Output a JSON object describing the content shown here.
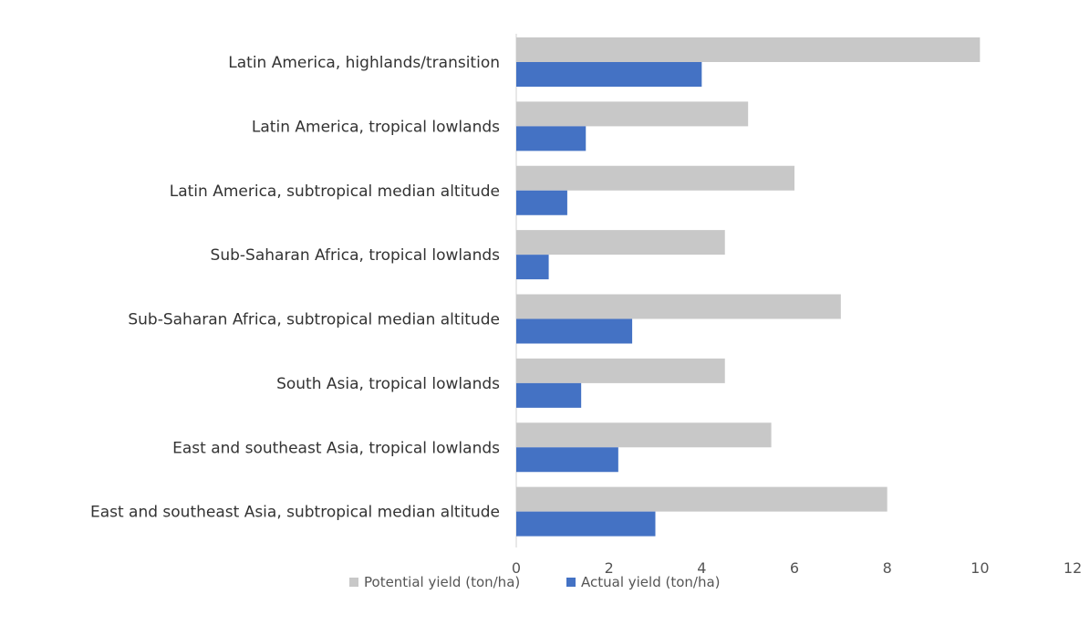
{
  "chart_data": {
    "type": "bar",
    "orientation": "horizontal",
    "categories": [
      "Latin America, highlands/transition",
      "Latin America, tropical lowlands",
      "Latin America, subtropical median altitude",
      "Sub-Saharan Africa, tropical lowlands",
      "Sub-Saharan Africa, subtropical median altitude",
      "South Asia, tropical lowlands",
      "East and southeast Asia, tropical lowlands",
      "East and southeast Asia, subtropical median altitude"
    ],
    "series": [
      {
        "name": "Potential yield (ton/ha)",
        "color": "#c8c8c8",
        "values": [
          10,
          5,
          6,
          4.5,
          7,
          4.5,
          5.5,
          8
        ]
      },
      {
        "name": "Actual yield (ton/ha)",
        "color": "#4472c4",
        "values": [
          4,
          1.5,
          1.1,
          0.7,
          2.5,
          1.4,
          2.2,
          3
        ]
      }
    ],
    "xlim": [
      0,
      12
    ],
    "xticks": [
      "0",
      "2",
      "4",
      "6",
      "8",
      "10",
      "12"
    ],
    "xlabel": "",
    "ylabel": "",
    "title": "",
    "grid": false,
    "legend_position": "bottom"
  }
}
